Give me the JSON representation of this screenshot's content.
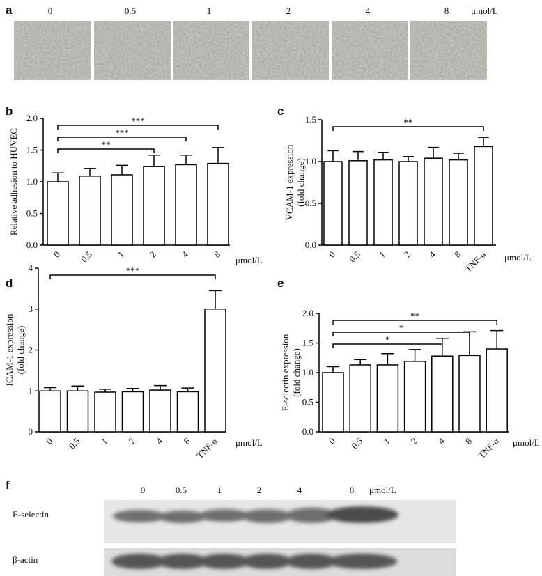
{
  "panel_a": {
    "label": "a",
    "concentrations": [
      "0",
      "0.5",
      "1",
      "2",
      "4",
      "8"
    ],
    "unit": "μmol/L"
  },
  "chart_data": [
    {
      "type": "bar",
      "panel_label": "b",
      "y_label": [
        "Relative adhesion to HUVEC"
      ],
      "x_unit": "μmol/L",
      "categories": [
        "0",
        "0.5",
        "1",
        "2",
        "4",
        "8"
      ],
      "values": [
        1.0,
        1.09,
        1.11,
        1.24,
        1.27,
        1.29
      ],
      "error": [
        0.14,
        0.12,
        0.15,
        0.18,
        0.15,
        0.25
      ],
      "color": "#ffffff",
      "ylim": [
        0,
        2.0
      ],
      "yticks": [
        {
          "value": 0,
          "label": "0.0"
        },
        {
          "value": 0.5,
          "label": "0.5"
        },
        {
          "value": 1.0,
          "label": "1.0"
        },
        {
          "value": 1.5,
          "label": "1.5"
        },
        {
          "value": 2.0,
          "label": "2.0"
        }
      ],
      "significance": [
        {
          "from": "0",
          "to": "2",
          "label": "**"
        },
        {
          "from": "0",
          "to": "4",
          "label": "***"
        },
        {
          "from": "0",
          "to": "8",
          "label": "***"
        }
      ]
    },
    {
      "type": "bar",
      "panel_label": "c",
      "y_label": [
        "VCAM-1 expression",
        "(fold change)"
      ],
      "x_unit": "μmol/L",
      "categories": [
        "0",
        "0.5",
        "1",
        "2",
        "4",
        "8",
        "TNF-α"
      ],
      "values": [
        1.0,
        1.01,
        1.02,
        1.0,
        1.04,
        1.02,
        1.18
      ],
      "error": [
        0.13,
        0.11,
        0.09,
        0.06,
        0.13,
        0.08,
        0.11
      ],
      "color": "#ffffff",
      "ylim": [
        0,
        1.5
      ],
      "yticks": [
        {
          "value": 0,
          "label": "0.0"
        },
        {
          "value": 0.5,
          "label": "0.5"
        },
        {
          "value": 1.0,
          "label": "1.0"
        },
        {
          "value": 1.5,
          "label": "1.5"
        }
      ],
      "significance": [
        {
          "from": "0",
          "to": "TNF-α",
          "label": "**"
        }
      ]
    },
    {
      "type": "bar",
      "panel_label": "d",
      "y_label": [
        "ICAM-1 expression",
        "(fold change)"
      ],
      "x_unit": "μmol/L",
      "categories": [
        "0",
        "0.5",
        "1",
        "2",
        "4",
        "8",
        "TNF-α"
      ],
      "values": [
        1.0,
        1.0,
        0.97,
        0.98,
        1.02,
        0.98,
        3.0
      ],
      "error": [
        0.08,
        0.12,
        0.07,
        0.08,
        0.11,
        0.09,
        0.45
      ],
      "color": "#ffffff",
      "ylim": [
        0,
        4
      ],
      "yticks": [
        0,
        1,
        2,
        3,
        4
      ],
      "significance": [
        {
          "from": "0",
          "to": "TNF-α",
          "label": "***"
        }
      ]
    },
    {
      "type": "bar",
      "panel_label": "e",
      "y_label": [
        "E-selectin expression",
        "(fold change)"
      ],
      "x_unit": "μmol/L",
      "categories": [
        "0",
        "0.5",
        "1",
        "2",
        "4",
        "8",
        "TNF-α"
      ],
      "values": [
        1.0,
        1.13,
        1.13,
        1.19,
        1.28,
        1.29,
        1.4
      ],
      "error": [
        0.1,
        0.09,
        0.19,
        0.2,
        0.3,
        0.4,
        0.31
      ],
      "color": "#ffffff",
      "ylim": [
        0,
        2.0
      ],
      "yticks": [
        {
          "value": 0,
          "label": "0.0"
        },
        {
          "value": 0.5,
          "label": "0.5"
        },
        {
          "value": 1.0,
          "label": "1.0"
        },
        {
          "value": 1.5,
          "label": "1.5"
        },
        {
          "value": 2.0,
          "label": "2.0"
        }
      ],
      "significance": [
        {
          "from": "0",
          "to": "4",
          "label": "*"
        },
        {
          "from": "0",
          "to": "8",
          "label": "*"
        },
        {
          "from": "0",
          "to": "TNF-α",
          "label": "**"
        }
      ]
    }
  ],
  "panel_f": {
    "label": "f",
    "lanes": [
      "0",
      "0.5",
      "1",
      "2",
      "4",
      "8"
    ],
    "unit": "μmol/L",
    "rows": [
      "E-selectin",
      "β-actin"
    ]
  }
}
